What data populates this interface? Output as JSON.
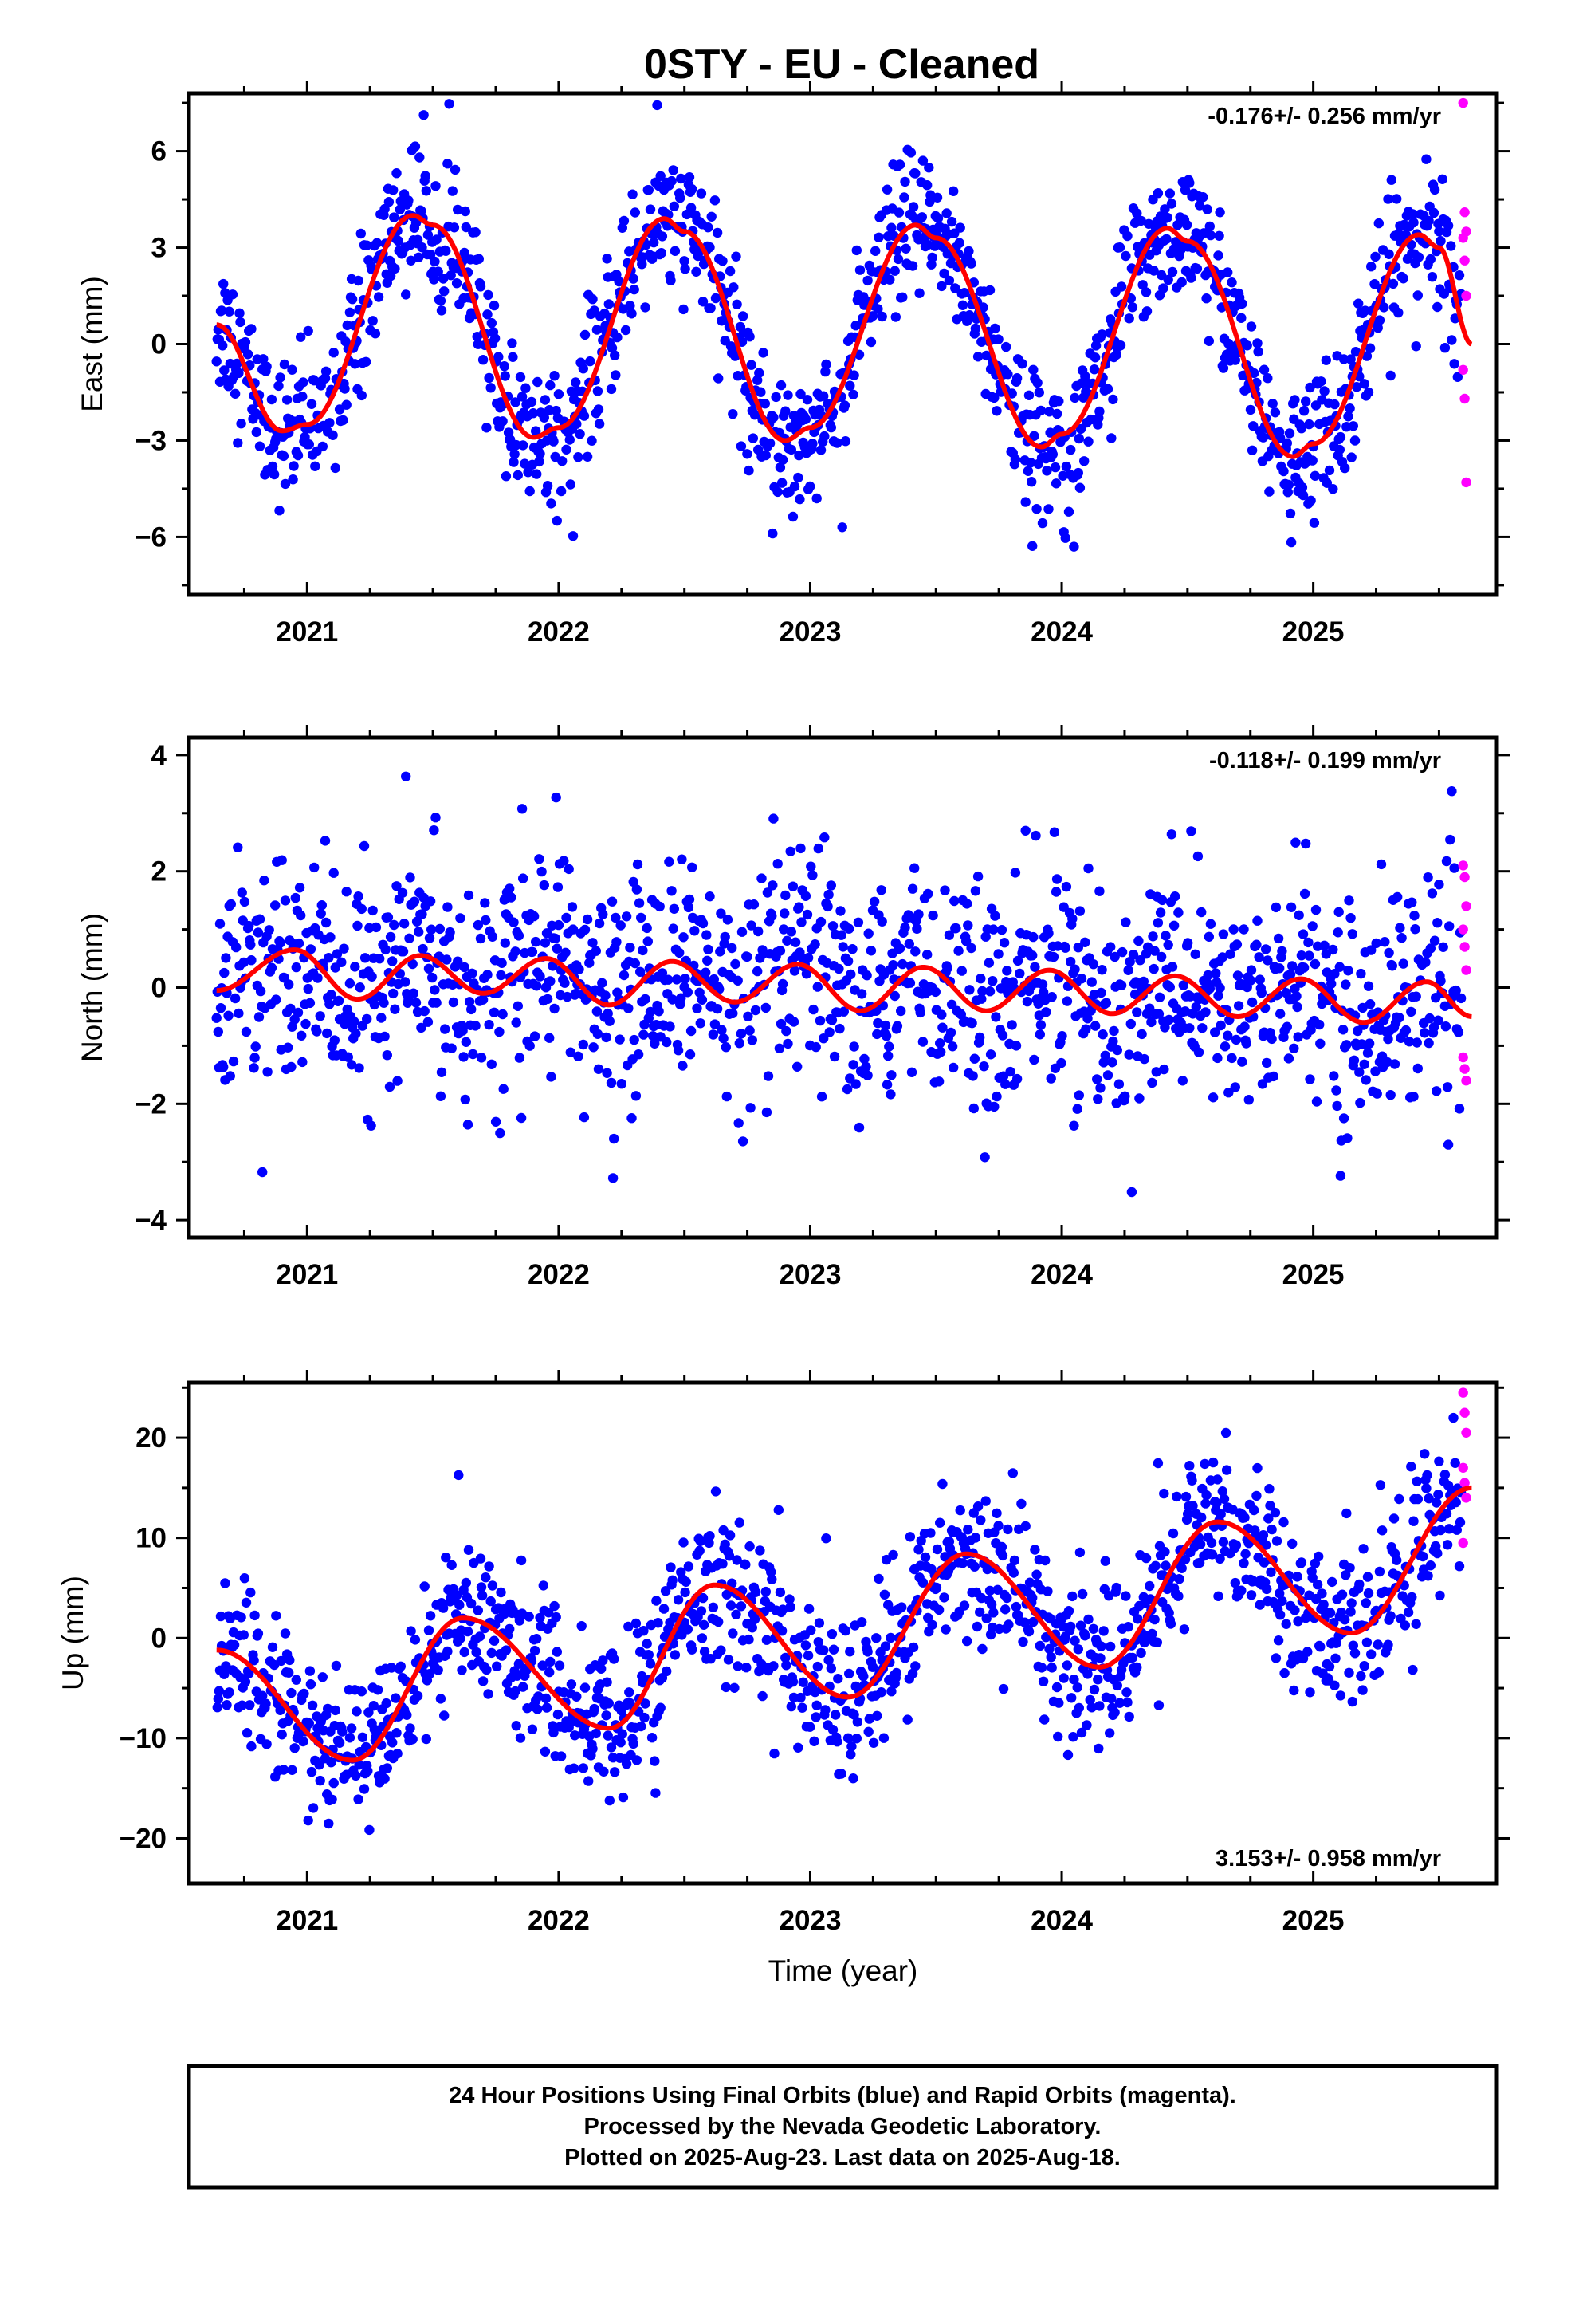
{
  "title": "0STY  - EU - Cleaned",
  "colors": {
    "final": "#0000ff",
    "rapid": "#ff00ff",
    "model": "#ff0000",
    "frame": "#000000"
  },
  "footer": {
    "line1": "24 Hour Positions Using Final Orbits (blue) and Rapid Orbits (magenta).",
    "line2": "Processed by the Nevada Geodetic Laboratory.",
    "line3": "Plotted on 2025-Aug-23. Last data on 2025-Aug-18."
  },
  "chart_data": [
    {
      "type": "scatter",
      "component": "east",
      "ylabel": "East (mm)",
      "xlabel": "",
      "rate_label": "-0.176+/- 0.256 mm/yr",
      "xlim": [
        2020.35,
        2025.56
      ],
      "ylim": [
        -7.8,
        7.8
      ],
      "xticks": [
        2021,
        2022,
        2023,
        2024,
        2025
      ],
      "yticks": [
        -6,
        -3,
        0,
        3,
        6
      ],
      "data_start": 2020.64,
      "data_end": 2025.63,
      "rapid_start": 2025.59,
      "model": {
        "offset": 0.45,
        "rate": -0.176,
        "annual_amp": 3.45,
        "annual_peak": 2021.42,
        "semiannual_amp": 0.3,
        "semiannual_peak": 2021.42
      },
      "model_curve": {
        "x": [
          2020.64,
          2020.9,
          2021.0,
          2021.42,
          2021.5,
          2021.9,
          2022.0,
          2022.42,
          2022.5,
          2022.9,
          2023.0,
          2023.42,
          2023.5,
          2023.92,
          2024.0,
          2024.42,
          2024.5,
          2024.92,
          2025.0,
          2025.42,
          2025.5,
          2025.63
        ],
        "y": [
          0.6,
          -2.7,
          -2.5,
          4.0,
          3.7,
          -2.9,
          -2.6,
          3.9,
          3.5,
          -3.0,
          -2.6,
          3.7,
          3.3,
          -3.2,
          -2.8,
          3.6,
          3.2,
          -3.5,
          -3.1,
          3.4,
          3.0,
          0.0
        ]
      },
      "scatter_sigma": 1.1,
      "rapid_values": [
        7.5,
        4.1,
        3.5,
        3.3,
        2.6,
        1.5,
        -0.8,
        -1.7,
        -4.3
      ]
    },
    {
      "type": "scatter",
      "component": "north",
      "ylabel": "North (mm)",
      "xlabel": "",
      "rate_label": "-0.118+/- 0.199 mm/yr",
      "xlim": [
        2020.35,
        2025.56
      ],
      "ylim": [
        -4.3,
        4.3
      ],
      "xticks": [
        2021,
        2022,
        2023,
        2024,
        2025
      ],
      "yticks": [
        -4,
        -2,
        0,
        2,
        4
      ],
      "data_start": 2020.64,
      "data_end": 2025.63,
      "rapid_start": 2025.59,
      "model": {
        "offset": 0.28,
        "rate": -0.118,
        "annual_amp": 0.1,
        "annual_peak": 2020.9,
        "semiannual_amp": 0.42,
        "semiannual_peak": 2020.95
      },
      "model_curve": {
        "x": [
          2020.64,
          2020.95,
          2021.2,
          2021.45,
          2021.7,
          2021.95,
          2022.2,
          2022.45,
          2022.7,
          2022.95,
          2023.2,
          2023.45,
          2023.7,
          2023.95,
          2024.2,
          2024.45,
          2024.7,
          2024.95,
          2025.2,
          2025.45,
          2025.63
        ],
        "y": [
          -0.05,
          0.65,
          -0.2,
          0.55,
          -0.1,
          0.5,
          -0.3,
          0.45,
          -0.25,
          0.4,
          -0.4,
          0.35,
          -0.4,
          0.3,
          -0.45,
          0.2,
          -0.5,
          0.15,
          -0.6,
          0.1,
          -0.5
        ]
      },
      "scatter_sigma": 0.95,
      "rapid_values": [
        2.1,
        1.9,
        1.4,
        1.0,
        0.7,
        0.3,
        -1.2,
        -1.4,
        -1.6
      ]
    },
    {
      "type": "scatter",
      "component": "up",
      "ylabel": "Up (mm)",
      "xlabel": "Time (year)",
      "rate_label": "3.153+/- 0.958 mm/yr",
      "xlim": [
        2020.35,
        2025.56
      ],
      "ylim": [
        -24.5,
        25.5
      ],
      "xticks": [
        2021,
        2022,
        2023,
        2024,
        2025
      ],
      "yticks": [
        -20,
        -10,
        0,
        10,
        20
      ],
      "data_start": 2020.64,
      "data_end": 2025.63,
      "rapid_start": 2025.59,
      "model": {
        "offset": -6.0,
        "rate": 3.153,
        "annual_amp": 7.2,
        "annual_peak": 2021.62,
        "semiannual_amp": 0.8,
        "semiannual_peak": 2021.62
      },
      "model_curve": {
        "x": [
          2020.64,
          2021.18,
          2021.62,
          2022.2,
          2022.62,
          2023.15,
          2023.62,
          2024.15,
          2024.62,
          2025.15,
          2025.63
        ],
        "y": [
          -1.2,
          -12.2,
          2.0,
          -9.0,
          5.3,
          -5.9,
          8.4,
          -2.9,
          11.6,
          0.5,
          15.0
        ]
      },
      "scatter_sigma": 4.0,
      "rapid_values": [
        24.5,
        22.5,
        20.5,
        17.0,
        15.5,
        14.0,
        9.5
      ]
    }
  ]
}
